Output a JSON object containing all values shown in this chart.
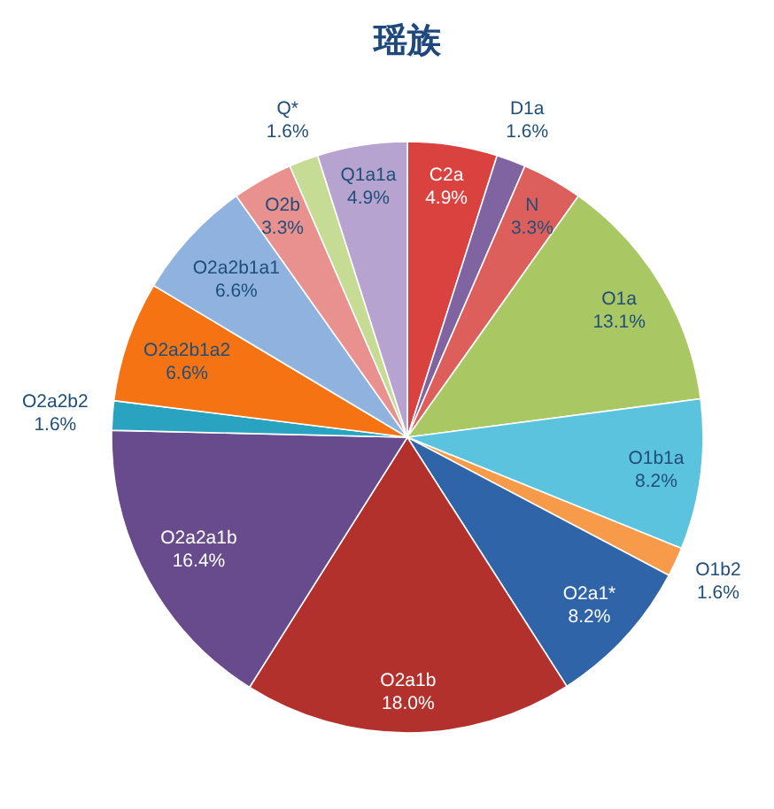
{
  "chart_data": {
    "type": "pie",
    "title": "瑶族",
    "categories": [
      "C2a",
      "D1a",
      "N",
      "O1a",
      "O1b1a",
      "O1b2",
      "O2a1*",
      "O2a1b",
      "O2a2a1b",
      "O2a2b2",
      "O2a2b1a2",
      "O2a2b1a1",
      "O2b",
      "Q*",
      "Q1a1a"
    ],
    "values": [
      4.9,
      1.6,
      3.3,
      13.1,
      8.2,
      1.6,
      8.2,
      18.0,
      16.4,
      1.6,
      6.6,
      6.6,
      3.3,
      1.6,
      4.9
    ],
    "value_labels": [
      "4.9%",
      "1.6%",
      "3.3%",
      "13.1%",
      "8.2%",
      "1.6%",
      "8.2%",
      "18.0%",
      "16.4%",
      "1.6%",
      "6.6%",
      "6.6%",
      "3.3%",
      "1.6%",
      "4.9%"
    ],
    "colors": [
      "#d9423e",
      "#8064a2",
      "#dd5f5c",
      "#a9c864",
      "#5cc3df",
      "#f79a4a",
      "#2f64a8",
      "#b3312d",
      "#674b8c",
      "#2aa3c0",
      "#f57312",
      "#8fb2df",
      "#e8918f",
      "#c6dc94",
      "#b7a3cf"
    ]
  }
}
